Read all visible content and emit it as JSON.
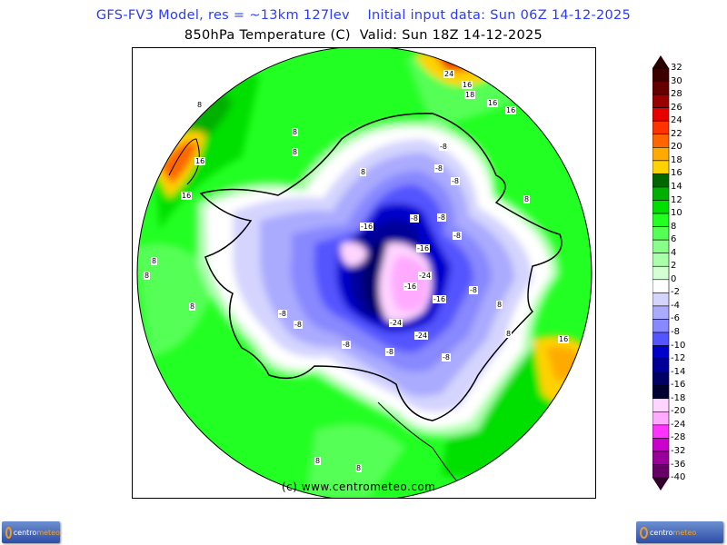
{
  "header": {
    "model_line": "GFS-FV3 Model, res = ~13km 127lev    Initial input data: Sun 06Z 14-12-2025",
    "field_line": "850hPa Temperature (C)  Valid: Sun 18Z 14-12-2025"
  },
  "map": {
    "projection": "north polar stereographic",
    "copyright": "(c) www.centrometeo.com",
    "contour_labels": [
      "16",
      "24",
      "18",
      "16",
      "16",
      "8",
      "8",
      "16",
      "8",
      "8",
      "-8",
      "-8",
      "-8",
      "-8",
      "-8",
      "-8",
      "-16",
      "-16",
      "-16",
      "-24",
      "-16",
      "-24",
      "-24",
      "-8",
      "-8",
      "-8",
      "-8",
      "-8",
      "-8",
      "8",
      "8",
      "8",
      "16",
      "8",
      "16",
      "8",
      "8",
      "8",
      "8"
    ]
  },
  "colorbar": {
    "labels": [
      "32",
      "30",
      "28",
      "26",
      "24",
      "22",
      "20",
      "18",
      "16",
      "14",
      "12",
      "10",
      "8",
      "6",
      "4",
      "2",
      "0",
      "-2",
      "-4",
      "-6",
      "-8",
      "-10",
      "-12",
      "-14",
      "-16",
      "-18",
      "-20",
      "-24",
      "-28",
      "-32",
      "-36",
      "-40"
    ],
    "colors": [
      "#3d0000",
      "#660000",
      "#990000",
      "#e60000",
      "#ff3300",
      "#ff6600",
      "#ffaa00",
      "#ffd200",
      "#006600",
      "#00b000",
      "#00e000",
      "#22ff22",
      "#55ff55",
      "#88ff88",
      "#aaffaa",
      "#d4ffd4",
      "#ffffff",
      "#d4d4ff",
      "#aaaaff",
      "#8888ff",
      "#5555ff",
      "#0000cc",
      "#000099",
      "#000066",
      "#000033",
      "#ffd4ff",
      "#ffaaff",
      "#ff33ff",
      "#cc00cc",
      "#990099",
      "#660066"
    ],
    "top_arrow_color": "#2a0000",
    "bottom_arrow_color": "#33002a"
  },
  "logos": {
    "left": {
      "text1": "centro",
      "text2": "meteo"
    },
    "right": {
      "text1": "centro",
      "text2": "meteo"
    }
  }
}
